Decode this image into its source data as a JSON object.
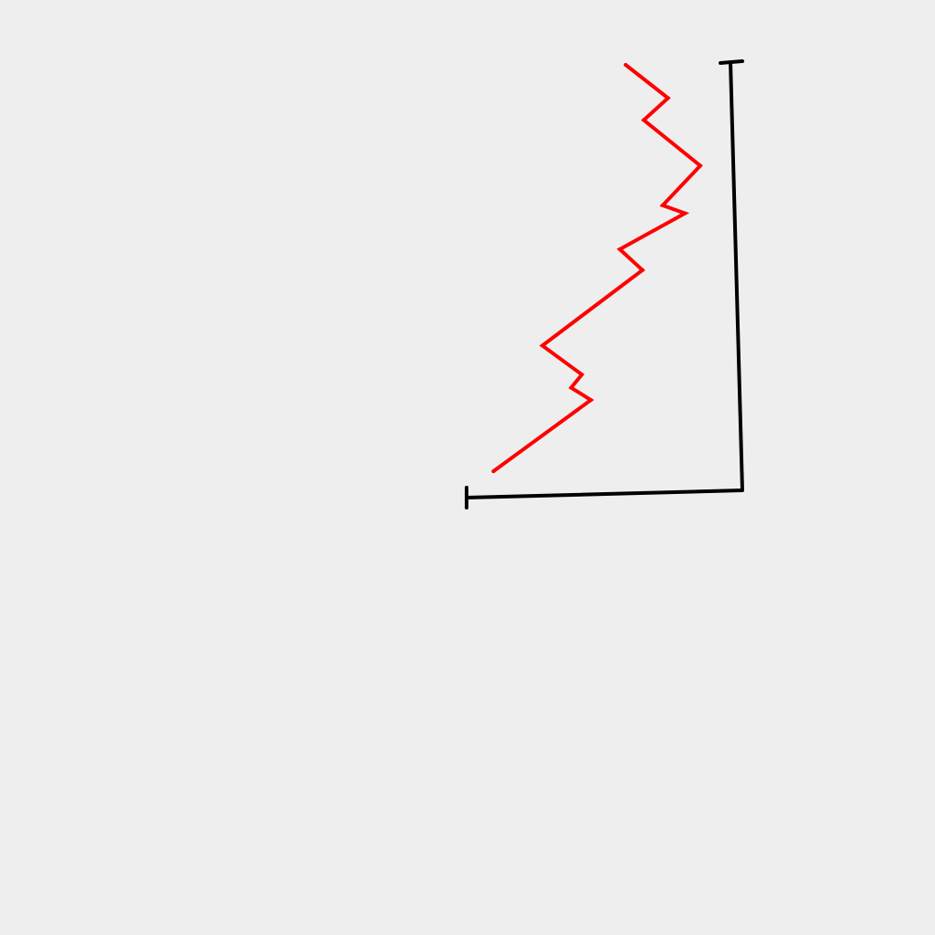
{
  "chart_data": {
    "type": "line",
    "title": "",
    "xlabel": "",
    "ylabel": "",
    "grid": false,
    "legend": "none",
    "series": [
      {
        "color": "#ff0000",
        "points": [
          {
            "x": 0.1,
            "y": 0.06
          },
          {
            "x": 0.46,
            "y": 0.22
          },
          {
            "x": 0.39,
            "y": 0.25
          },
          {
            "x": 0.43,
            "y": 0.28
          },
          {
            "x": 0.29,
            "y": 0.35
          },
          {
            "x": 0.66,
            "y": 0.52
          },
          {
            "x": 0.58,
            "y": 0.57
          },
          {
            "x": 0.82,
            "y": 0.65
          },
          {
            "x": 0.74,
            "y": 0.67
          },
          {
            "x": 0.88,
            "y": 0.76
          },
          {
            "x": 0.68,
            "y": 0.87
          },
          {
            "x": 0.77,
            "y": 0.92
          },
          {
            "x": 0.62,
            "y": 1.0
          }
        ]
      }
    ],
    "axis_color": "#000000",
    "background": "#eeeeee"
  }
}
